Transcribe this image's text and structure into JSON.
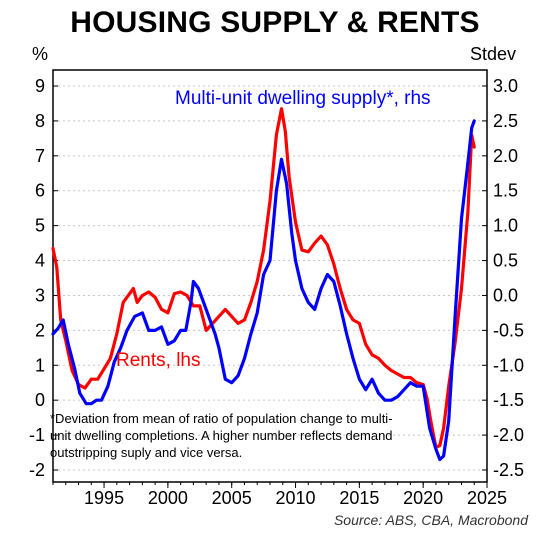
{
  "title": "HOUSING SUPPLY & RENTS",
  "left_unit": "%",
  "right_unit": "Stdev",
  "source": "Source: ABS, CBA, Macrobond",
  "footnote": "*Deviation from mean of ratio of population change to multi-unit dwelling completions. A higher number reflects demand outstripping suply and vice versa.",
  "chart_data": {
    "type": "line",
    "title": "HOUSING SUPPLY & RENTS",
    "x_ticks": [
      "1995",
      "2000",
      "2005",
      "2010",
      "2015",
      "2020",
      "2025"
    ],
    "y_left": {
      "label": "%",
      "ylim": [
        -2,
        9
      ],
      "ticks": [
        "-2",
        "-1",
        "0",
        "1",
        "2",
        "3",
        "4",
        "5",
        "6",
        "7",
        "8",
        "9"
      ]
    },
    "y_right": {
      "label": "Stdev",
      "ylim": [
        -2.5,
        3.0
      ],
      "ticks": [
        "-2.5",
        "-2.0",
        "-1.5",
        "-1.0",
        "-0.5",
        "0.0",
        "0.5",
        "1.0",
        "1.5",
        "2.0",
        "2.5",
        "3.0"
      ]
    },
    "xlim": [
      1991,
      2025
    ],
    "grid": true,
    "series": [
      {
        "name": "Rents, lhs",
        "axis": "left",
        "color": "#ff0000",
        "points": [
          [
            1991.0,
            4.35
          ],
          [
            1991.3,
            3.8
          ],
          [
            1991.6,
            2.3
          ],
          [
            1992.0,
            1.7
          ],
          [
            1992.5,
            0.85
          ],
          [
            1993.0,
            0.45
          ],
          [
            1993.5,
            0.35
          ],
          [
            1994.0,
            0.6
          ],
          [
            1994.5,
            0.6
          ],
          [
            1995.0,
            0.9
          ],
          [
            1995.5,
            1.2
          ],
          [
            1996.0,
            1.9
          ],
          [
            1996.5,
            2.8
          ],
          [
            1997.0,
            3.05
          ],
          [
            1997.3,
            3.2
          ],
          [
            1997.6,
            2.8
          ],
          [
            1998.0,
            3.0
          ],
          [
            1998.5,
            3.1
          ],
          [
            1999.0,
            2.95
          ],
          [
            1999.5,
            2.6
          ],
          [
            2000.0,
            2.5
          ],
          [
            2000.5,
            3.05
          ],
          [
            2001.0,
            3.1
          ],
          [
            2001.5,
            3.0
          ],
          [
            2002.0,
            2.7
          ],
          [
            2002.5,
            2.7
          ],
          [
            2003.0,
            2.0
          ],
          [
            2003.5,
            2.2
          ],
          [
            2004.0,
            2.4
          ],
          [
            2004.5,
            2.6
          ],
          [
            2005.0,
            2.4
          ],
          [
            2005.5,
            2.2
          ],
          [
            2006.0,
            2.3
          ],
          [
            2006.5,
            2.8
          ],
          [
            2007.0,
            3.4
          ],
          [
            2007.5,
            4.3
          ],
          [
            2008.0,
            5.7
          ],
          [
            2008.5,
            7.6
          ],
          [
            2008.9,
            8.35
          ],
          [
            2009.2,
            7.7
          ],
          [
            2009.5,
            6.4
          ],
          [
            2010.0,
            5.1
          ],
          [
            2010.5,
            4.3
          ],
          [
            2011.0,
            4.25
          ],
          [
            2011.5,
            4.5
          ],
          [
            2012.0,
            4.7
          ],
          [
            2012.5,
            4.45
          ],
          [
            2013.0,
            3.9
          ],
          [
            2013.5,
            3.2
          ],
          [
            2014.0,
            2.6
          ],
          [
            2014.5,
            2.3
          ],
          [
            2015.0,
            2.2
          ],
          [
            2015.5,
            1.6
          ],
          [
            2016.0,
            1.3
          ],
          [
            2016.5,
            1.2
          ],
          [
            2017.0,
            1.0
          ],
          [
            2017.5,
            0.85
          ],
          [
            2018.0,
            0.75
          ],
          [
            2018.5,
            0.65
          ],
          [
            2019.0,
            0.65
          ],
          [
            2019.5,
            0.5
          ],
          [
            2020.0,
            0.45
          ],
          [
            2020.3,
            0.05
          ],
          [
            2020.6,
            -0.6
          ],
          [
            2021.0,
            -1.35
          ],
          [
            2021.3,
            -1.3
          ],
          [
            2021.6,
            -0.8
          ],
          [
            2022.0,
            0.4
          ],
          [
            2022.5,
            1.65
          ],
          [
            2023.0,
            3.2
          ],
          [
            2023.5,
            5.4
          ],
          [
            2023.8,
            7.6
          ],
          [
            2024.0,
            7.25
          ]
        ]
      },
      {
        "name": "Multi-unit dwelling supply*, rhs",
        "axis": "right",
        "color": "#0000ff",
        "points": [
          [
            1991.0,
            -0.55
          ],
          [
            1991.4,
            -0.47
          ],
          [
            1991.8,
            -0.35
          ],
          [
            1992.2,
            -0.7
          ],
          [
            1992.7,
            -1.05
          ],
          [
            1993.1,
            -1.4
          ],
          [
            1993.6,
            -1.55
          ],
          [
            1994.0,
            -1.55
          ],
          [
            1994.4,
            -1.5
          ],
          [
            1994.8,
            -1.5
          ],
          [
            1995.3,
            -1.3
          ],
          [
            1995.8,
            -0.95
          ],
          [
            1996.3,
            -0.75
          ],
          [
            1996.8,
            -0.5
          ],
          [
            1997.4,
            -0.3
          ],
          [
            1998.0,
            -0.25
          ],
          [
            1998.5,
            -0.5
          ],
          [
            1999.0,
            -0.5
          ],
          [
            1999.5,
            -0.45
          ],
          [
            2000.0,
            -0.7
          ],
          [
            2000.5,
            -0.65
          ],
          [
            2001.0,
            -0.5
          ],
          [
            2001.4,
            -0.5
          ],
          [
            2001.8,
            -0.1
          ],
          [
            2002.0,
            0.2
          ],
          [
            2002.4,
            0.1
          ],
          [
            2002.8,
            -0.1
          ],
          [
            2003.2,
            -0.3
          ],
          [
            2003.7,
            -0.55
          ],
          [
            2004.0,
            -0.75
          ],
          [
            2004.5,
            -1.2
          ],
          [
            2005.0,
            -1.25
          ],
          [
            2005.5,
            -1.15
          ],
          [
            2006.0,
            -0.9
          ],
          [
            2006.5,
            -0.55
          ],
          [
            2007.0,
            -0.25
          ],
          [
            2007.5,
            0.3
          ],
          [
            2008.0,
            0.5
          ],
          [
            2008.5,
            1.5
          ],
          [
            2008.9,
            1.95
          ],
          [
            2009.3,
            1.6
          ],
          [
            2009.7,
            0.9
          ],
          [
            2010.0,
            0.5
          ],
          [
            2010.5,
            0.1
          ],
          [
            2011.0,
            -0.1
          ],
          [
            2011.5,
            -0.2
          ],
          [
            2012.0,
            0.1
          ],
          [
            2012.5,
            0.3
          ],
          [
            2013.0,
            0.2
          ],
          [
            2013.5,
            -0.15
          ],
          [
            2014.0,
            -0.55
          ],
          [
            2014.5,
            -0.9
          ],
          [
            2015.0,
            -1.2
          ],
          [
            2015.5,
            -1.35
          ],
          [
            2016.0,
            -1.2
          ],
          [
            2016.5,
            -1.4
          ],
          [
            2017.0,
            -1.5
          ],
          [
            2017.5,
            -1.5
          ],
          [
            2018.0,
            -1.45
          ],
          [
            2018.5,
            -1.35
          ],
          [
            2019.0,
            -1.25
          ],
          [
            2019.5,
            -1.3
          ],
          [
            2020.0,
            -1.3
          ],
          [
            2020.5,
            -1.9
          ],
          [
            2021.0,
            -2.2
          ],
          [
            2021.3,
            -2.35
          ],
          [
            2021.6,
            -2.3
          ],
          [
            2022.0,
            -1.8
          ],
          [
            2022.5,
            -0.3
          ],
          [
            2023.0,
            1.1
          ],
          [
            2023.5,
            1.9
          ],
          [
            2023.8,
            2.4
          ],
          [
            2024.0,
            2.5
          ]
        ]
      }
    ],
    "labels": [
      {
        "text": "Multi-unit dwelling supply*, rhs",
        "color": "#0000ff"
      },
      {
        "text": "Rents, lhs",
        "color": "#ff0000"
      }
    ]
  }
}
